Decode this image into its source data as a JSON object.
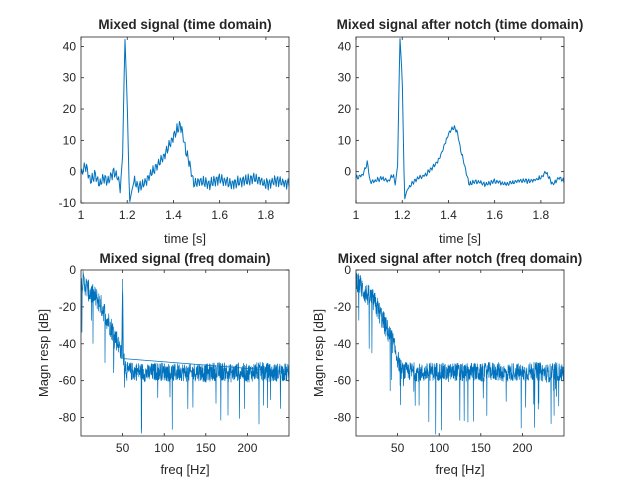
{
  "chart_data": [
    {
      "type": "line",
      "title": "Mixed signal (time domain)",
      "xlabel": "time [s]",
      "ylabel": "",
      "xlim": [
        1,
        1.9
      ],
      "ylim": [
        -10,
        43
      ],
      "xticks": [
        1,
        1.2,
        1.4,
        1.6,
        1.8
      ],
      "xtick_labels": [
        "1",
        "1.2",
        "1.4",
        "1.6",
        "1.8"
      ],
      "yticks": [
        -10,
        0,
        10,
        20,
        30,
        40
      ],
      "ytick_labels": [
        "-10",
        "0",
        "10",
        "20",
        "30",
        "40"
      ],
      "color": "#0072bd",
      "series": [
        {
          "x": [
            1.0,
            1.02,
            1.04,
            1.06,
            1.08,
            1.1,
            1.12,
            1.14,
            1.16,
            1.17,
            1.18,
            1.19,
            1.2,
            1.21,
            1.22,
            1.23,
            1.25,
            1.28,
            1.31,
            1.34,
            1.36,
            1.38,
            1.4,
            1.42,
            1.43,
            1.44,
            1.45,
            1.47,
            1.49,
            1.52,
            1.56,
            1.6,
            1.65,
            1.7,
            1.75,
            1.8,
            1.85,
            1.9
          ],
          "y": [
            -1,
            2,
            -3,
            -1,
            -4,
            -2,
            -3,
            0,
            -2,
            -5,
            5,
            43,
            22,
            -10,
            -6,
            -3,
            -5,
            -3,
            0,
            3,
            5,
            8,
            11,
            14,
            15,
            12,
            8,
            2,
            -4,
            -3,
            -4,
            -2,
            -4,
            -3,
            -2,
            -4,
            -3,
            -4
          ]
        }
      ]
    },
    {
      "type": "line",
      "title": "Mixed signal after notch (time domain)",
      "xlabel": "time [s]",
      "ylabel": "",
      "xlim": [
        1,
        1.9
      ],
      "ylim": [
        -10,
        43
      ],
      "xticks": [
        1,
        1.2,
        1.4,
        1.6,
        1.8
      ],
      "xtick_labels": [
        "1",
        "1.2",
        "1.4",
        "1.6",
        "1.8"
      ],
      "yticks": [
        0,
        10,
        20,
        30,
        40
      ],
      "ytick_labels": [
        "0",
        "10",
        "20",
        "30",
        "40"
      ],
      "color": "#0072bd",
      "series": [
        {
          "x": [
            1.0,
            1.03,
            1.05,
            1.06,
            1.08,
            1.11,
            1.14,
            1.16,
            1.17,
            1.18,
            1.19,
            1.2,
            1.21,
            1.22,
            1.24,
            1.27,
            1.3,
            1.33,
            1.36,
            1.38,
            1.4,
            1.42,
            1.43,
            1.44,
            1.45,
            1.47,
            1.49,
            1.52,
            1.56,
            1.6,
            1.65,
            1.7,
            1.75,
            1.8,
            1.82,
            1.85,
            1.88,
            1.9
          ],
          "y": [
            -2,
            -1,
            3,
            -3,
            -3,
            -2,
            -3,
            -1,
            -4,
            2,
            43,
            30,
            -9,
            -6,
            -4,
            -2,
            -1,
            1,
            4,
            8,
            12,
            14,
            14,
            12,
            8,
            2,
            -4,
            -3,
            -4,
            -3,
            -4,
            -3,
            -3,
            -2,
            0,
            -4,
            -2,
            -3
          ]
        }
      ]
    },
    {
      "type": "line",
      "title": "Mixed signal (freq domain)",
      "xlabel": "freq [Hz]",
      "ylabel": "Magn resp [dB]",
      "xlim": [
        0,
        250
      ],
      "ylim": [
        -90,
        0
      ],
      "xticks": [
        50,
        100,
        150,
        200
      ],
      "xtick_labels": [
        "50",
        "100",
        "150",
        "200"
      ],
      "yticks": [
        -80,
        -60,
        -40,
        -20,
        0
      ],
      "ytick_labels": [
        "-80",
        "-60",
        "-40",
        "-20",
        "0"
      ],
      "color": "#0072bd",
      "series": [
        {
          "x": [
            0,
            5,
            10,
            15,
            20,
            25,
            30,
            35,
            40,
            45,
            49,
            50,
            51,
            55,
            60,
            70,
            80,
            90,
            100,
            110,
            120,
            130,
            140,
            150,
            160,
            170,
            180,
            190,
            200,
            210,
            220,
            230,
            240,
            250
          ],
          "y": [
            -5,
            -8,
            -12,
            -14,
            -16,
            -20,
            -25,
            -30,
            -35,
            -40,
            -45,
            -5,
            -48,
            -55,
            -55,
            -55,
            -56,
            -55,
            -55,
            -56,
            -55,
            -56,
            -55,
            -56,
            -55,
            -55,
            -56,
            -55,
            -56,
            -55,
            -55,
            -56,
            -55,
            -56
          ]
        }
      ]
    },
    {
      "type": "line",
      "title": "Mixed signal after notch (freq domain)",
      "xlabel": "freq [Hz]",
      "ylabel": "Magn resp [dB]",
      "xlim": [
        0,
        250
      ],
      "ylim": [
        -90,
        0
      ],
      "xticks": [
        50,
        100,
        150,
        200
      ],
      "xtick_labels": [
        "50",
        "100",
        "150",
        "200"
      ],
      "yticks": [
        -80,
        -60,
        -40,
        -20,
        0
      ],
      "ytick_labels": [
        "-80",
        "-60",
        "-40",
        "-20",
        "0"
      ],
      "color": "#0072bd",
      "series": [
        {
          "x": [
            0,
            5,
            10,
            15,
            20,
            25,
            30,
            35,
            40,
            45,
            50,
            55,
            60,
            70,
            80,
            90,
            100,
            110,
            120,
            130,
            140,
            150,
            160,
            170,
            180,
            190,
            200,
            210,
            220,
            230,
            240,
            250
          ],
          "y": [
            -5,
            -8,
            -12,
            -14,
            -16,
            -20,
            -25,
            -30,
            -35,
            -40,
            -48,
            -55,
            -55,
            -55,
            -56,
            -55,
            -55,
            -56,
            -55,
            -56,
            -55,
            -56,
            -55,
            -55,
            -56,
            -55,
            -56,
            -55,
            -55,
            -56,
            -55,
            -56
          ]
        }
      ]
    }
  ]
}
